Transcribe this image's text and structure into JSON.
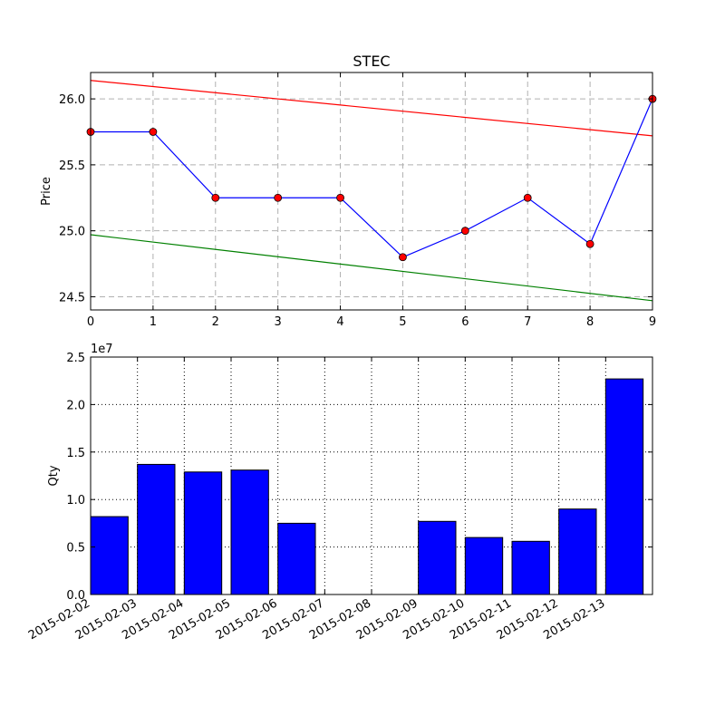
{
  "chart_data": [
    {
      "type": "line",
      "title": "STEC",
      "ylabel": "Price",
      "xlabel": "",
      "xlim": [
        0,
        9
      ],
      "ylim": [
        24.4,
        26.2
      ],
      "xticks": [
        0,
        1,
        2,
        3,
        4,
        5,
        6,
        7,
        8,
        9
      ],
      "xtick_labels": [
        "0",
        "1",
        "2",
        "3",
        "4",
        "5",
        "6",
        "7",
        "8",
        "9"
      ],
      "yticks": [
        24.5,
        25.0,
        25.5,
        26.0
      ],
      "ytick_labels": [
        "24.5",
        "25.0",
        "25.5",
        "26.0"
      ],
      "grid": true,
      "series": [
        {
          "x": [
            0,
            1,
            2,
            3,
            4,
            5,
            6,
            7,
            8,
            9
          ],
          "values": [
            25.75,
            25.75,
            25.25,
            25.25,
            25.25,
            24.8,
            25.0,
            25.25,
            24.9,
            26.0
          ],
          "color": "#0000ff",
          "marker_color": "#ff0000"
        }
      ],
      "trend_lines": [
        {
          "x": [
            0,
            9
          ],
          "values": [
            26.14,
            25.72
          ],
          "color": "#ff0000"
        },
        {
          "x": [
            0,
            9
          ],
          "values": [
            24.97,
            24.47
          ],
          "color": "#008000"
        }
      ]
    },
    {
      "type": "bar",
      "title": "",
      "ylabel": "Qty",
      "xlabel": "",
      "scale_label": "1e7",
      "ylim": [
        0,
        2.5
      ],
      "yticks": [
        0.0,
        0.5,
        1.0,
        1.5,
        2.0,
        2.5
      ],
      "ytick_labels": [
        "0.0",
        "0.5",
        "1.0",
        "1.5",
        "2.0",
        "2.5"
      ],
      "grid": true,
      "categories": [
        "2015-02-02",
        "2015-02-03",
        "2015-02-04",
        "2015-02-05",
        "2015-02-06",
        "2015-02-07",
        "2015-02-08",
        "2015-02-09",
        "2015-02-10",
        "2015-02-11",
        "2015-02-12",
        "2015-02-13"
      ],
      "values": [
        0.82,
        1.37,
        1.29,
        1.31,
        0.75,
        0,
        0,
        0.77,
        0.6,
        0.56,
        0.9,
        2.27
      ],
      "color": "#0000ff"
    }
  ]
}
